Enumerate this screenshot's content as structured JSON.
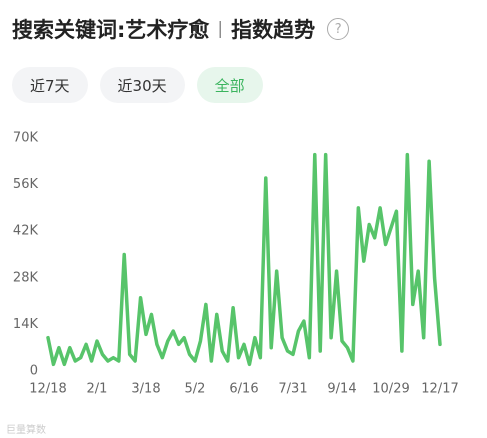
{
  "header": {
    "title": "搜索关键词:艺术疗愈",
    "separator": "|",
    "subtitle": "指数趋势",
    "help": "?"
  },
  "tabs": [
    {
      "label": "近7天",
      "active": false
    },
    {
      "label": "近30天",
      "active": false
    },
    {
      "label": "全部",
      "active": true
    }
  ],
  "watermark": "巨量算数",
  "chart_data": {
    "type": "line",
    "color": "#57c46a",
    "categories": [
      "12/18",
      null,
      null,
      null,
      null,
      null,
      null,
      null,
      null,
      "2/1",
      null,
      null,
      null,
      null,
      null,
      null,
      null,
      null,
      "3/18",
      null,
      null,
      null,
      null,
      null,
      null,
      null,
      null,
      "5/2",
      null,
      null,
      null,
      null,
      null,
      null,
      null,
      null,
      "6/16",
      null,
      null,
      null,
      null,
      null,
      null,
      null,
      null,
      "7/31",
      null,
      null,
      null,
      null,
      null,
      null,
      null,
      null,
      "9/14",
      null,
      null,
      null,
      null,
      null,
      null,
      null,
      null,
      "10/29",
      null,
      null,
      null,
      null,
      null,
      null,
      null,
      null,
      "12/17"
    ],
    "values": [
      10000,
      2000,
      7000,
      2000,
      7000,
      3000,
      4000,
      8000,
      3000,
      9000,
      5000,
      3000,
      4000,
      3000,
      35000,
      5000,
      3000,
      22000,
      11000,
      17000,
      8000,
      4000,
      9000,
      12000,
      8000,
      10000,
      5000,
      3000,
      9000,
      20000,
      3000,
      17000,
      6000,
      3000,
      19000,
      4000,
      8000,
      2000,
      10000,
      4000,
      58000,
      7000,
      30000,
      10000,
      6000,
      5000,
      12000,
      15000,
      4000,
      65000,
      6000,
      65000,
      10000,
      30000,
      9000,
      7000,
      3000,
      49000,
      33000,
      44000,
      40000,
      49000,
      38000,
      43000,
      48000,
      6000,
      65000,
      20000,
      30000,
      10000,
      63000,
      28000,
      8000
    ],
    "ylim": [
      0,
      70000
    ],
    "yticks": [
      0,
      {
        "value": 14000,
        "label": "14K"
      },
      {
        "value": 28000,
        "label": "28K"
      },
      {
        "value": 42000,
        "label": "42K"
      },
      {
        "value": 56000,
        "label": "56K"
      },
      {
        "value": 70000,
        "label": "70K"
      }
    ],
    "grid": false
  }
}
